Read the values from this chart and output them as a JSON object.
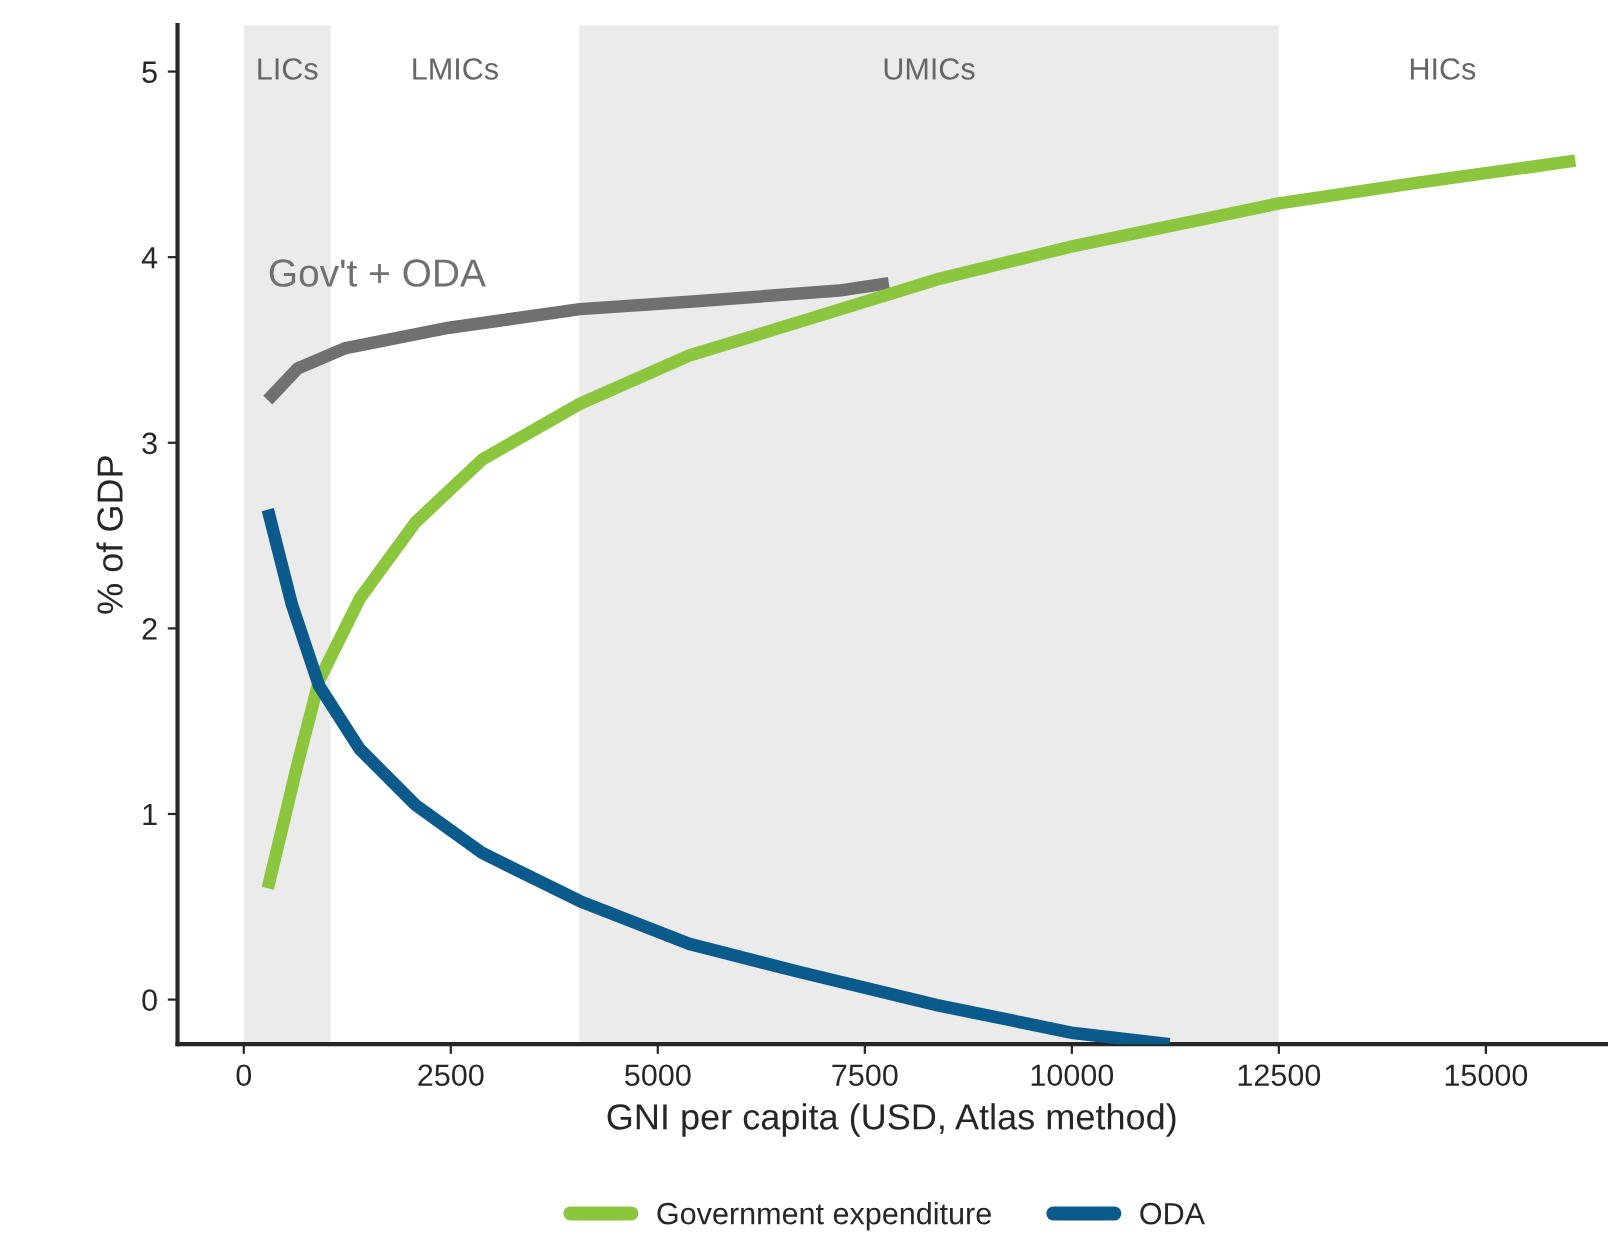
{
  "chart_data": {
    "type": "line",
    "xlabel": "GNI per capita (USD, Atlas method)",
    "ylabel": "% of GDP",
    "xlim": [
      -800,
      16450
    ],
    "ylim": [
      -0.24,
      5.25
    ],
    "xticks": [
      0,
      2500,
      5000,
      7500,
      10000,
      12500,
      15000
    ],
    "yticks": [
      0,
      1,
      2,
      3,
      4,
      5
    ],
    "grid": false,
    "legend": "bottom",
    "line_style": "solid",
    "marker": "none",
    "bands": [
      {
        "axis": "x",
        "from": 0,
        "to": 1050,
        "label": "LICs",
        "color": "#ebebeb"
      },
      {
        "axis": "x",
        "from": 4050,
        "to": 12500,
        "label": "UMICs",
        "color": "#ebebeb"
      }
    ],
    "annotations": [
      "LMICs",
      "HICs",
      "Gov't + ODA"
    ],
    "series": [
      {
        "color": "#707070",
        "x": [
          290,
          650,
          1230,
          2480,
          4060,
          5380,
          7190,
          7790
        ],
        "values": [
          3.23,
          3.4,
          3.51,
          3.62,
          3.72,
          3.76,
          3.82,
          3.86
        ]
      },
      {
        "name": "Government expenditure",
        "color": "#8cc63f",
        "x": [
          290,
          650,
          910,
          1400,
          2070,
          2880,
          4060,
          5380,
          6700,
          8370,
          10020,
          12500,
          14160,
          16080
        ],
        "values": [
          0.6,
          1.27,
          1.72,
          2.16,
          2.57,
          2.91,
          3.21,
          3.47,
          3.65,
          3.88,
          4.06,
          4.29,
          4.4,
          4.52
        ]
      },
      {
        "name": "ODA",
        "color": "#0a5a8c",
        "x": [
          290,
          580,
          910,
          1400,
          2070,
          2880,
          4060,
          5380,
          6700,
          8370,
          10020,
          11180
        ],
        "values": [
          2.64,
          2.13,
          1.69,
          1.35,
          1.05,
          0.79,
          0.53,
          0.3,
          0.15,
          -0.03,
          -0.18,
          -0.24
        ]
      }
    ]
  }
}
